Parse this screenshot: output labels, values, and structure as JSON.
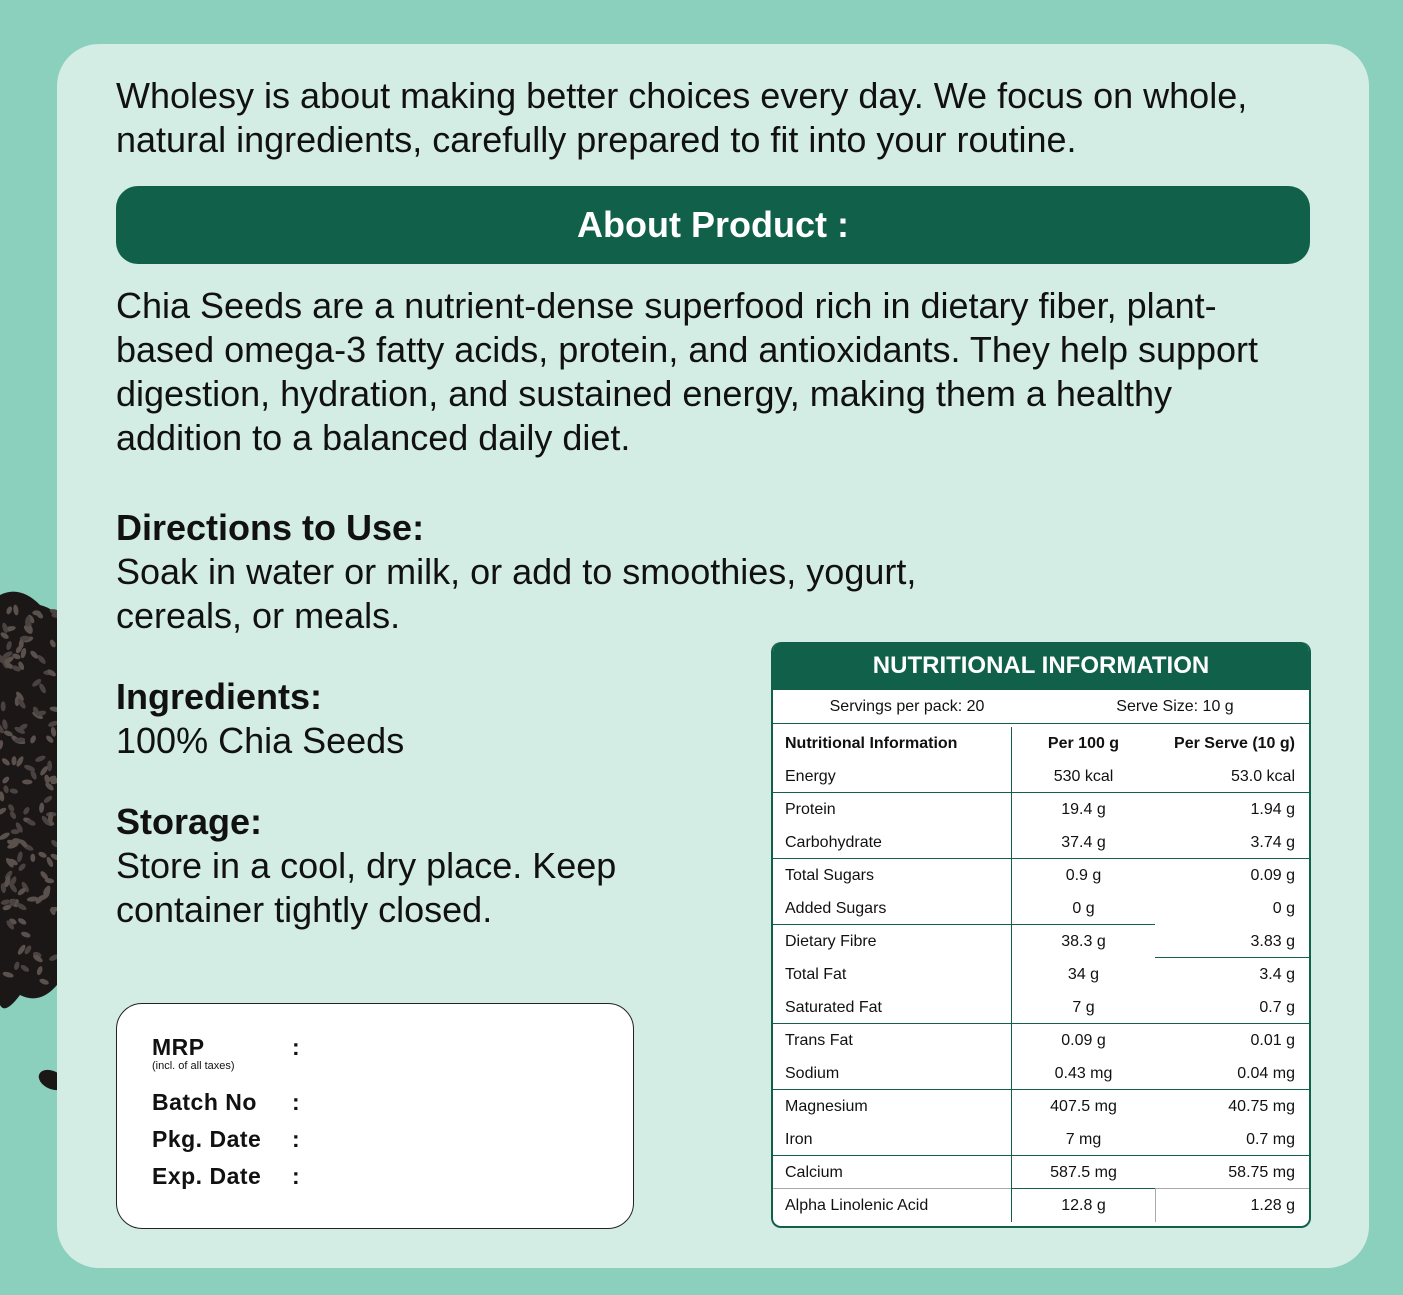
{
  "colors": {
    "background": "#8bcfbd",
    "card": "#d3ece4",
    "brand_green": "#10604a"
  },
  "intro": "Wholesy is about making better choices every day. We focus on whole, natural ingredients, carefully prepared to fit into your routine.",
  "banner": "About Product :",
  "description": "Chia Seeds are a nutrient-dense superfood rich in dietary fiber, plant-based omega-3 fatty acids, protein, and antioxidants. They help support digestion, hydration, and sustained energy, making them a healthy addition to a balanced daily diet.",
  "directions": {
    "title": "Directions to Use:",
    "text_1": "Soak in water or milk, or add to smoothies, yogurt,",
    "text_2": "cereals, or meals."
  },
  "ingredients": {
    "title": "Ingredients:",
    "text": "100% Chia Seeds"
  },
  "storage": {
    "title": "Storage:",
    "text_1": "Store in a cool, dry place. Keep",
    "text_2": "container tightly closed."
  },
  "mrp_box": {
    "mrp": "MRP",
    "mrp_note": "(incl. of all taxes)",
    "batch": "Batch No",
    "pkg": "Pkg. Date",
    "exp": "Exp. Date",
    "colon": ":"
  },
  "nutrition": {
    "title": "NUTRITIONAL INFORMATION",
    "servings": "Servings per pack: 20",
    "serve_size": "Serve Size: 10 g",
    "headers": [
      "Nutritional Information",
      "Per 100 g",
      "Per Serve (10 g)"
    ],
    "rows": [
      [
        "Energy",
        "530 kcal",
        "53.0 kcal"
      ],
      [
        "Protein",
        "19.4 g",
        "1.94 g"
      ],
      [
        "Carbohydrate",
        "37.4 g",
        "3.74 g"
      ],
      [
        "Total Sugars",
        "0.9 g",
        "0.09 g"
      ],
      [
        "Added Sugars",
        "0 g",
        "0 g"
      ],
      [
        "Dietary Fibre",
        "38.3 g",
        "3.83 g"
      ],
      [
        "Total Fat",
        "34 g",
        "3.4 g"
      ],
      [
        "Saturated Fat",
        "7 g",
        "0.7 g"
      ],
      [
        "Trans Fat",
        "0.09 g",
        "0.01 g"
      ],
      [
        "Sodium",
        "0.43 mg",
        "0.04 mg"
      ],
      [
        "Magnesium",
        "407.5 mg",
        "40.75 mg"
      ],
      [
        "Iron",
        "7 mg",
        "0.7 mg"
      ],
      [
        "Calcium",
        "587.5 mg",
        "58.75 mg"
      ],
      [
        "Alpha Linolenic Acid",
        "12.8 g",
        "1.28 g"
      ]
    ]
  }
}
